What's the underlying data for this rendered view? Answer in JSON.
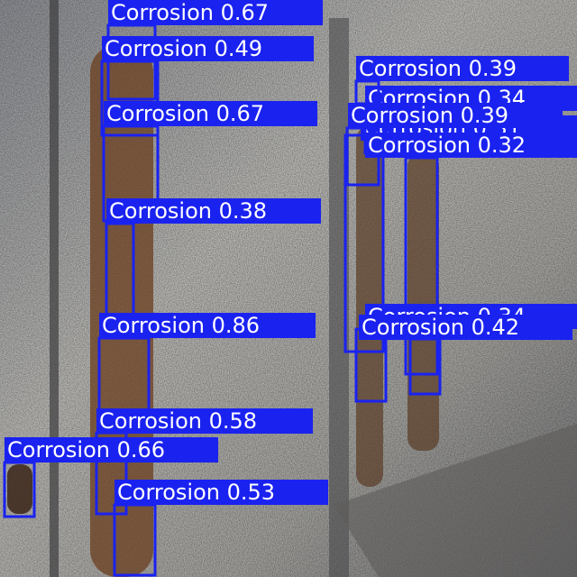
{
  "detections": [
    {
      "label": "Corrosion 0.67"
    },
    {
      "label": "Corrosion 0.49"
    },
    {
      "label": "Corrosion 0.67"
    },
    {
      "label": "Corrosion 0.38"
    },
    {
      "label": "Corrosion 0.86"
    },
    {
      "label": "Corrosion 0.58"
    },
    {
      "label": "Corrosion 0.66"
    },
    {
      "label": "Corrosion 0.53"
    },
    {
      "label": "Corrosion 0.31"
    },
    {
      "label": "Corrosion 0.34"
    },
    {
      "label": "Corrosion 0.39"
    },
    {
      "label": "Corrosion 0.39"
    },
    {
      "label": "Corrosion 0.32"
    },
    {
      "label": "Corrosion 0.34"
    },
    {
      "label": "Corrosion 0.42"
    }
  ]
}
